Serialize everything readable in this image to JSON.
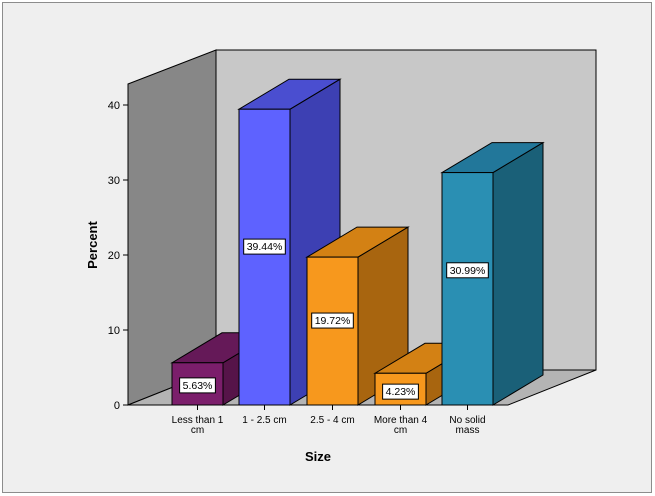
{
  "chart_data": {
    "type": "bar",
    "categories": [
      "Less than 1 cm",
      "1 - 2.5 cm",
      "2.5 - 4 cm",
      "More than 4 cm",
      "No solid mass"
    ],
    "category_tick_lines": [
      [
        "Less than 1",
        "cm"
      ],
      [
        "1 - 2.5 cm"
      ],
      [
        "2.5 - 4 cm"
      ],
      [
        "More than 4",
        "cm"
      ],
      [
        "No solid",
        "mass"
      ]
    ],
    "values": [
      5.63,
      39.44,
      19.72,
      4.23,
      30.99
    ],
    "data_labels": [
      "5.63%",
      "39.44%",
      "19.72%",
      "4.23%",
      "30.99%"
    ],
    "xlabel": "Size",
    "ylabel": "Percent",
    "ylim": [
      0,
      40
    ],
    "yticks": [
      0,
      10,
      20,
      30,
      40
    ],
    "colors": [
      "#7b1e6b",
      "#5e62ff",
      "#f7981d",
      "#f7981d",
      "#2a8fb3"
    ],
    "side_colors": [
      "#561449",
      "#3d40b3",
      "#a8650f",
      "#a8650f",
      "#1a6078"
    ],
    "top_colors": [
      "#651958",
      "#4a4ed0",
      "#d38114",
      "#d38114",
      "#22779a"
    ],
    "grid": false,
    "style": "3d",
    "legend": "none",
    "wall_color": "#c8c8c8",
    "side_wall_color": "#878787"
  }
}
